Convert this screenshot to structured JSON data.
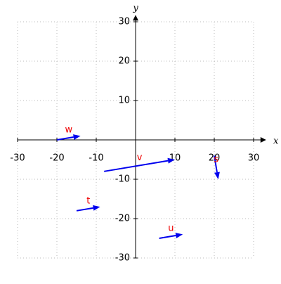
{
  "chart_data": {
    "type": "quiver",
    "xlabel": "x",
    "ylabel": "y",
    "xlim": [
      -30,
      30
    ],
    "ylim": [
      -30,
      30
    ],
    "xticks": [
      -30,
      -20,
      -10,
      10,
      20,
      30
    ],
    "yticks": [
      -30,
      -20,
      -10,
      10,
      20,
      30
    ],
    "grid": true,
    "color": "#0000ee",
    "label_color": "#ee0000",
    "series": [
      {
        "name": "w",
        "x0": -20,
        "y0": 0,
        "x1": -14,
        "y1": 1
      },
      {
        "name": "v",
        "x0": -8,
        "y0": -8,
        "x1": 10,
        "y1": -5
      },
      {
        "name": "s",
        "x0": 20,
        "y0": -4,
        "x1": 21,
        "y1": -10
      },
      {
        "name": "t",
        "x0": -15,
        "y0": -18,
        "x1": -9,
        "y1": -17
      },
      {
        "name": "u",
        "x0": 6,
        "y0": -25,
        "x1": 12,
        "y1": -24
      }
    ]
  }
}
